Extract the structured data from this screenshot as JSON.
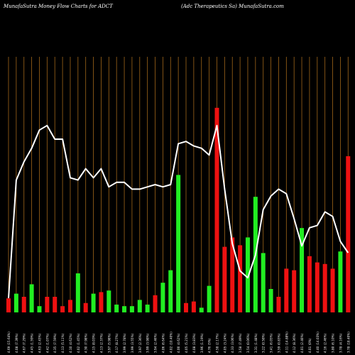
{
  "header": {
    "title_left": "MunafaSutra  Money Flow  Charts for ADCT",
    "title_right": "(Adc Therapeutics Sa) MunafaSutra.com"
  },
  "colors": {
    "background": "#000000",
    "gridline": "#a0661a",
    "up_bar": "#22ee22",
    "down_bar": "#ee1111",
    "price_line": "#ffffff",
    "tick_text": "#ffffff"
  },
  "chart_data": {
    "type": "bar",
    "title": "MunafaSutra  Money Flow  Charts for ADCT",
    "subtitle": "(Adc Therapeutics Sa) MunafaSutra.com",
    "categories": [
      "4.69 (15.64%)",
      "4.08 (7.39%)",
      "4.67 (7.29%)",
      "4.45 (1.59%)",
      "4.63 (2.43%)",
      "4.42 (1.07%)",
      "4.35 (7.59%)",
      "4.13 (5.11%)",
      "4.10 (4.62%)",
      "4.02 (1.45%)",
      "4.30 (7.98%)",
      "4.15 (8.03%)",
      "4.13 (2.37%)",
      "3.97 (5.98%)",
      "4.17 (8.27%)",
      "3.99 (2.78%)",
      "3.99 (3.55%)",
      "3.97 (2.36%)",
      "3.99 (3.98%)",
      "3.94 (2.46%)",
      "4.06 (6.64%)",
      "4.02 (10.40%)",
      "4.00 (4.62%)",
      "4.05 (5.21%)",
      "4.08 (3.83%)",
      "3.96 (1.19%)",
      "4.76 (5%)",
      "4.58 (2.17%)",
      "4.05 (3.24%)",
      "4.33 (3.06%)",
      "3.58 (7.49%)",
      "3.54 (0.06%)",
      "3.31 (1.48%)",
      "3.22 (0.58%)",
      "3.41 (6.05%)",
      "3.59 (0.83%)",
      "4.11 (14.88%)",
      "4.12 (8.36%)",
      "4.01 (2.40%)",
      "4.01 (0%)",
      "4.40 (14.03%)",
      "4.16 (2.46%)",
      "3.80 (6.10%)",
      "3.78 (4.16%)",
      "3.78 (18.40%)"
    ],
    "bar_values": [
      9,
      12,
      10,
      18,
      4,
      10,
      10,
      4,
      8,
      25,
      6,
      12,
      13,
      14,
      5,
      4,
      4,
      8,
      5,
      11,
      19,
      27,
      88,
      6,
      7,
      3,
      17,
      131,
      42,
      48,
      43,
      48,
      74,
      38,
      15,
      10,
      28,
      27,
      54,
      36,
      32,
      31,
      28,
      39,
      100
    ],
    "bar_direction": [
      "down",
      "up",
      "down",
      "up",
      "up",
      "down",
      "down",
      "down",
      "down",
      "up",
      "down",
      "up",
      "down",
      "up",
      "up",
      "up",
      "up",
      "up",
      "up",
      "down",
      "up",
      "up",
      "up",
      "down",
      "down",
      "up",
      "up",
      "down",
      "down",
      "down",
      "down",
      "up",
      "up",
      "up",
      "up",
      "down",
      "down",
      "down",
      "up",
      "down",
      "down",
      "down",
      "down",
      "up",
      "down"
    ],
    "price_line": [
      0,
      52,
      60,
      66,
      74,
      76,
      70,
      70,
      53,
      52,
      57,
      53,
      57,
      49,
      51,
      51,
      48,
      48,
      49,
      50,
      49,
      50,
      68,
      69,
      67,
      66,
      63,
      76,
      48,
      24,
      12,
      9,
      19,
      39,
      45,
      48,
      46,
      35,
      23,
      31,
      32,
      38,
      36,
      25,
      20
    ],
    "ylim": [
      0,
      100
    ],
    "grid": true,
    "legend": "none"
  }
}
